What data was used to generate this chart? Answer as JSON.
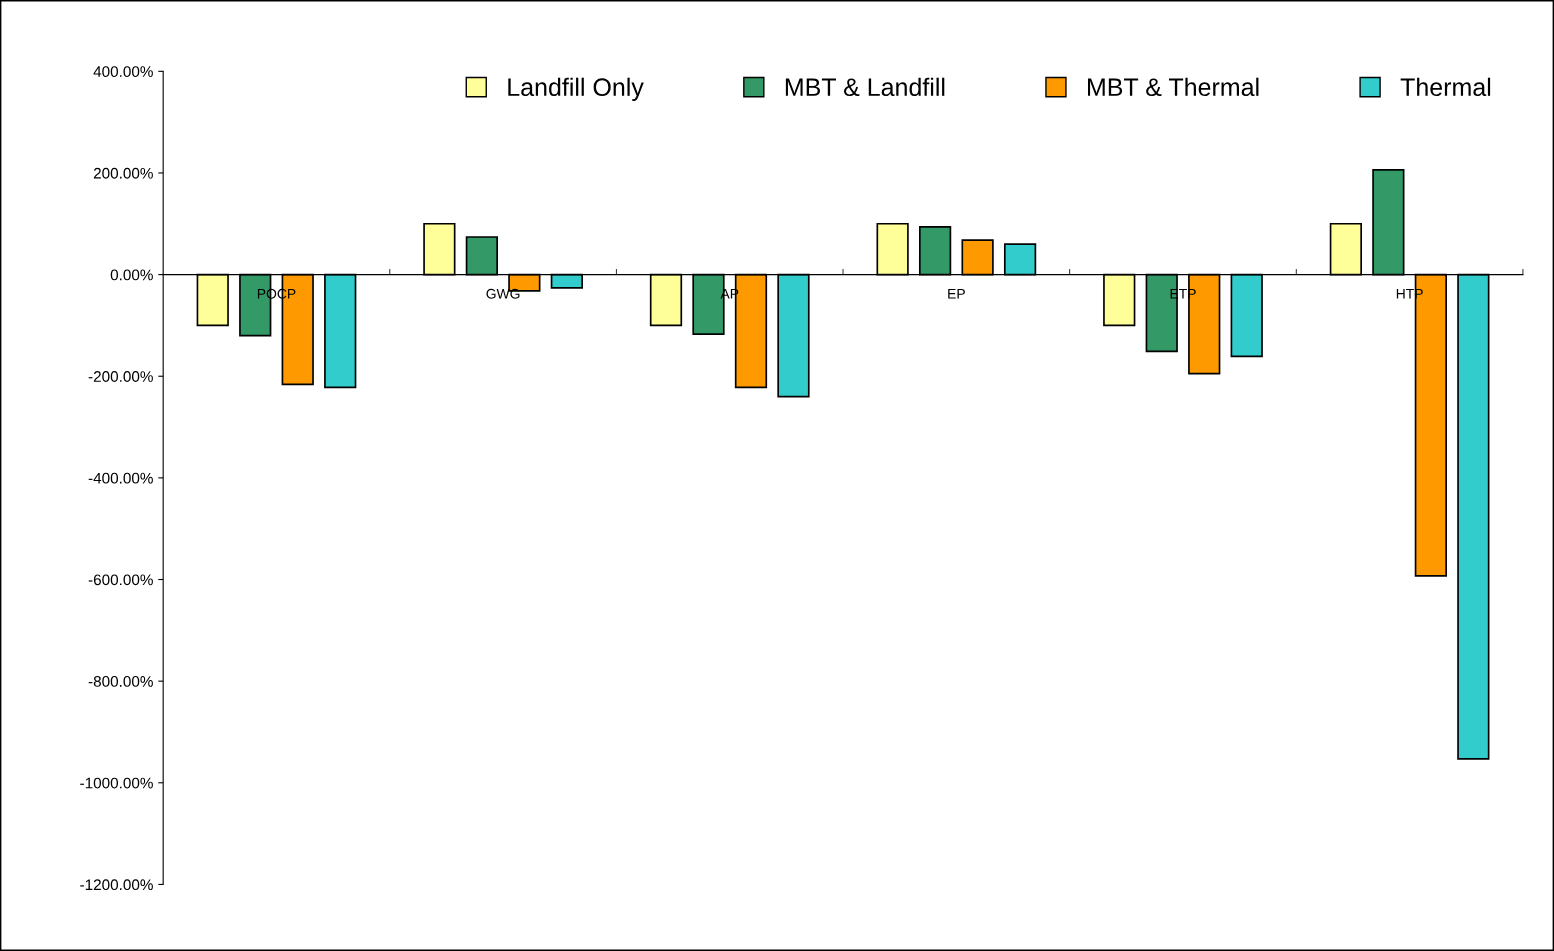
{
  "chart_data": {
    "type": "bar",
    "categories": [
      "POCP",
      "GWG",
      "AP",
      "EP",
      "ETP",
      "HTP"
    ],
    "series": [
      {
        "name": "Landfill Only",
        "color": "#ffff99",
        "values": [
          -100,
          100,
          -100,
          100,
          -100,
          100
        ]
      },
      {
        "name": "MBT & Landfill",
        "color": "#339966",
        "values": [
          -120,
          74,
          -117,
          94,
          -151,
          206
        ]
      },
      {
        "name": "MBT & Thermal",
        "color": "#ff9900",
        "values": [
          -216,
          -32,
          -222,
          68,
          -195,
          -593
        ]
      },
      {
        "name": "Thermal",
        "color": "#33cccc",
        "values": [
          -222,
          -26,
          -240,
          60,
          -161,
          -953
        ]
      }
    ],
    "ylim": [
      -1200,
      400
    ],
    "yticks": [
      {
        "value": -1200,
        "label": "-1200.00%"
      },
      {
        "value": -1000,
        "label": "-1000.00%"
      },
      {
        "value": -800,
        "label": "-800.00%"
      },
      {
        "value": -600,
        "label": "-600.00%"
      },
      {
        "value": -400,
        "label": "-400.00%"
      },
      {
        "value": -200,
        "label": "-200.00%"
      },
      {
        "value": 0,
        "label": "0.00%"
      },
      {
        "value": 200,
        "label": "200.00%"
      },
      {
        "value": 400,
        "label": "400.00%"
      }
    ],
    "legend": "top",
    "grid": false
  }
}
